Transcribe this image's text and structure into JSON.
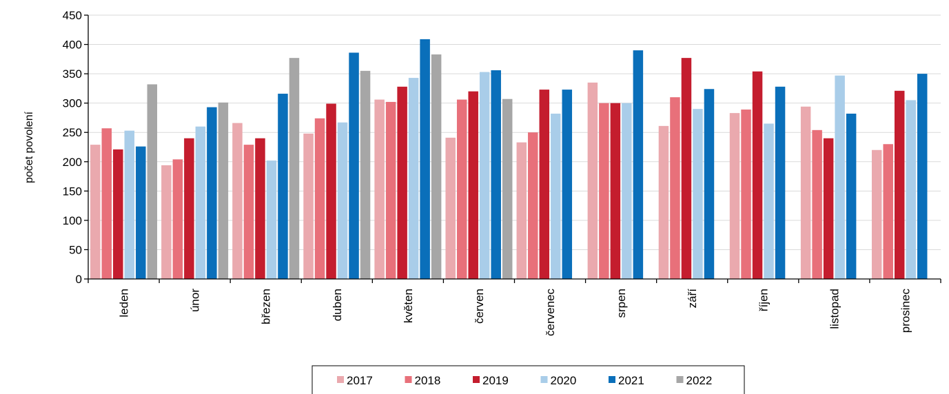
{
  "chart_data": {
    "type": "bar",
    "title": "",
    "xlabel": "",
    "ylabel": "počet povolení",
    "ylim": [
      0,
      450
    ],
    "yticks": [
      0,
      50,
      100,
      150,
      200,
      250,
      300,
      350,
      400,
      450
    ],
    "grid": true,
    "legend_position": "bottom",
    "categories": [
      "leden",
      "únor",
      "březen",
      "duben",
      "květen",
      "červen",
      "červenec",
      "srpen",
      "září",
      "říjen",
      "listopad",
      "prosinec"
    ],
    "series": [
      {
        "name": "2017",
        "color": "#eaa9ae",
        "values": [
          229,
          194,
          266,
          248,
          306,
          241,
          233,
          335,
          261,
          283,
          294,
          220
        ]
      },
      {
        "name": "2018",
        "color": "#e8707a",
        "values": [
          257,
          204,
          229,
          274,
          302,
          306,
          250,
          300,
          310,
          289,
          254,
          230
        ]
      },
      {
        "name": "2019",
        "color": "#c41d2e",
        "values": [
          221,
          240,
          240,
          299,
          328,
          320,
          323,
          300,
          377,
          354,
          240,
          321
        ]
      },
      {
        "name": "2020",
        "color": "#a9cde9",
        "values": [
          253,
          260,
          202,
          267,
          343,
          353,
          282,
          300,
          290,
          265,
          347,
          305
        ]
      },
      {
        "name": "2021",
        "color": "#0a6fba",
        "values": [
          226,
          293,
          316,
          386,
          409,
          356,
          323,
          390,
          324,
          328,
          282,
          350
        ]
      },
      {
        "name": "2022",
        "color": "#a6a6a6",
        "values": [
          332,
          301,
          377,
          355,
          383,
          307,
          null,
          null,
          null,
          null,
          null,
          null
        ]
      }
    ]
  }
}
